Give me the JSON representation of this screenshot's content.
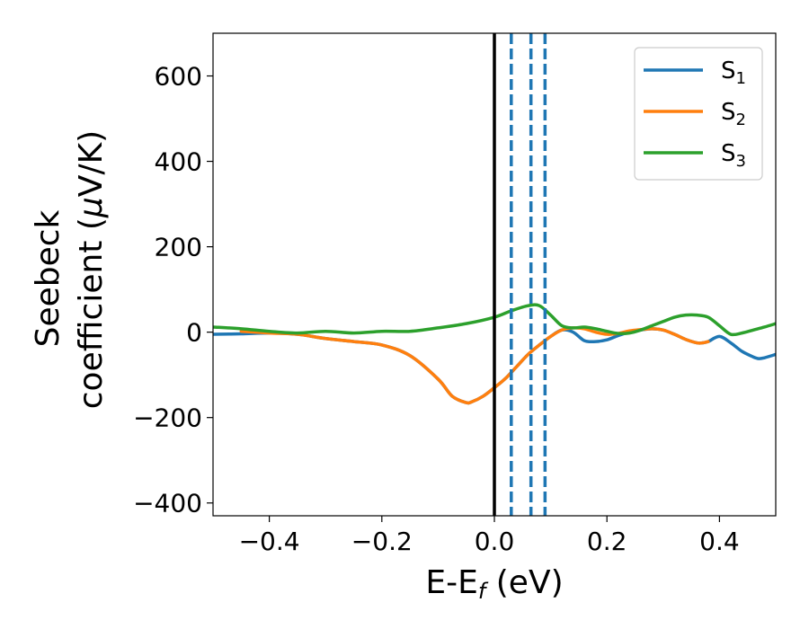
{
  "chart_data": {
    "type": "line",
    "xlabel_main": "E-E",
    "xlabel_sub": "f",
    "xlabel_unit": " (eV)",
    "ylabel_line1": "Seebeck",
    "ylabel_line2_pre": "coefficient  (",
    "ylabel_mu": "μ",
    "ylabel_line2_post": "V/K)",
    "xlim": [
      -0.5,
      0.5
    ],
    "ylim": [
      -430,
      700
    ],
    "xticks": [
      -0.4,
      -0.2,
      0.0,
      0.2,
      0.4
    ],
    "xtick_labels": [
      "−0.4",
      "−0.2",
      "0.0",
      "0.2",
      "0.4"
    ],
    "yticks": [
      -400,
      -200,
      0,
      200,
      400,
      600
    ],
    "ytick_labels": [
      "−400",
      "−200",
      "0",
      "200",
      "400",
      "600"
    ],
    "legend_placement": "top-right",
    "grid": false,
    "vlines": [
      {
        "x": 0.0,
        "style": "solid",
        "color": "#000000"
      },
      {
        "x": 0.03,
        "style": "dashed",
        "color": "#1f77b4"
      },
      {
        "x": 0.065,
        "style": "dashed",
        "color": "#1f77b4"
      },
      {
        "x": 0.09,
        "style": "dashed",
        "color": "#1f77b4"
      }
    ],
    "series": [
      {
        "name": "S",
        "sub": "1",
        "color": "#1f77b4",
        "x": [
          -0.5,
          -0.45,
          -0.4,
          -0.35,
          -0.3,
          -0.25,
          -0.2,
          -0.15,
          -0.1,
          -0.075,
          -0.05,
          -0.04,
          -0.02,
          0.0,
          0.02,
          0.04,
          0.06,
          0.08,
          0.1,
          0.12,
          0.14,
          0.16,
          0.18,
          0.2,
          0.22,
          0.24,
          0.26,
          0.28,
          0.3,
          0.32,
          0.34,
          0.36,
          0.37,
          0.38,
          0.4,
          0.42,
          0.44,
          0.46,
          0.47,
          0.48,
          0.5
        ],
        "y": [
          -5,
          -4,
          -2,
          -5,
          -15,
          -22,
          -30,
          -55,
          -110,
          -150,
          -165,
          -163,
          -150,
          -130,
          -108,
          -80,
          -52,
          -30,
          -10,
          5,
          0,
          -20,
          -22,
          -18,
          -8,
          0,
          5,
          8,
          5,
          -5,
          -17,
          -25,
          -25,
          -22,
          -10,
          -25,
          -45,
          -58,
          -62,
          -60,
          -52
        ]
      },
      {
        "name": "S",
        "sub": "2",
        "color": "#ff7f0e",
        "x": [
          -0.45,
          -0.4,
          -0.35,
          -0.3,
          -0.25,
          -0.2,
          -0.15,
          -0.1,
          -0.075,
          -0.05,
          -0.04,
          -0.02,
          0.0,
          0.02,
          0.04,
          0.06,
          0.08,
          0.1,
          0.12,
          0.14,
          0.16,
          0.18,
          0.2,
          0.22,
          0.24,
          0.26,
          0.28,
          0.3,
          0.32,
          0.34,
          0.36,
          0.37,
          0.38
        ],
        "y": [
          2,
          -2,
          -5,
          -15,
          -22,
          -30,
          -55,
          -110,
          -150,
          -165,
          -163,
          -150,
          -130,
          -108,
          -80,
          -52,
          -30,
          -10,
          5,
          10,
          8,
          0,
          -5,
          -3,
          3,
          6,
          8,
          5,
          -5,
          -17,
          -25,
          -25,
          -22
        ]
      },
      {
        "name": "S",
        "sub": "3",
        "color": "#2ca02c",
        "x": [
          -0.5,
          -0.45,
          -0.4,
          -0.35,
          -0.3,
          -0.25,
          -0.2,
          -0.15,
          -0.1,
          -0.05,
          0.0,
          0.03,
          0.06,
          0.08,
          0.1,
          0.12,
          0.14,
          0.16,
          0.18,
          0.2,
          0.22,
          0.24,
          0.26,
          0.28,
          0.3,
          0.32,
          0.34,
          0.36,
          0.38,
          0.4,
          0.42,
          0.44,
          0.46,
          0.48,
          0.5
        ],
        "y": [
          12,
          8,
          2,
          -2,
          2,
          -2,
          2,
          2,
          10,
          20,
          35,
          50,
          62,
          62,
          40,
          15,
          10,
          12,
          8,
          2,
          -3,
          -2,
          5,
          15,
          25,
          35,
          40,
          40,
          35,
          15,
          -5,
          -2,
          5,
          12,
          20
        ]
      }
    ]
  }
}
